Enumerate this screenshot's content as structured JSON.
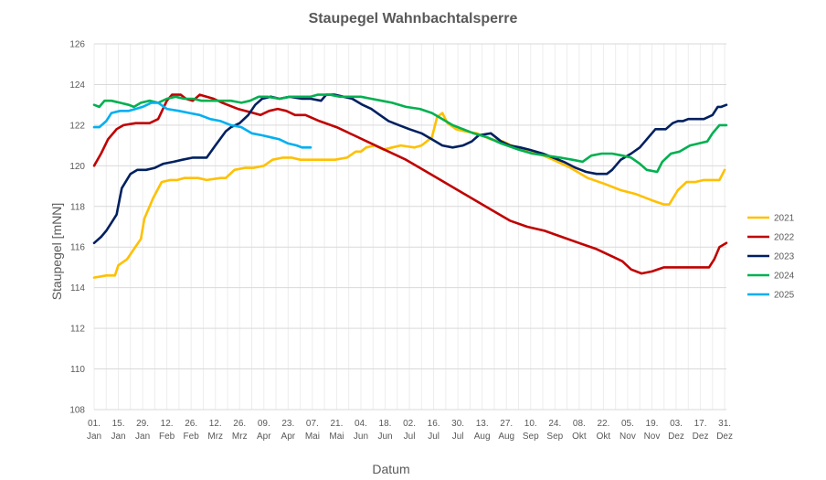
{
  "chart_data": {
    "type": "line",
    "title": "Staupegel Wahnbachtalsperre",
    "xlabel": "Datum",
    "ylabel": "Staupegel  [mNN]",
    "ylim": [
      108,
      126
    ],
    "yticks": [
      108,
      110,
      112,
      114,
      116,
      118,
      120,
      122,
      124,
      126
    ],
    "xlim": [
      1,
      366
    ],
    "grid": true,
    "legend_position": "right",
    "x_ticks": [
      {
        "day": 1,
        "d": "01.",
        "m": "Jan"
      },
      {
        "day": 15,
        "d": "15.",
        "m": "Jan"
      },
      {
        "day": 29,
        "d": "29.",
        "m": "Jan"
      },
      {
        "day": 43,
        "d": "12.",
        "m": "Feb"
      },
      {
        "day": 57,
        "d": "26.",
        "m": "Feb"
      },
      {
        "day": 71,
        "d": "12.",
        "m": "Mrz"
      },
      {
        "day": 85,
        "d": "26.",
        "m": "Mrz"
      },
      {
        "day": 99,
        "d": "09.",
        "m": "Apr"
      },
      {
        "day": 113,
        "d": "23.",
        "m": "Apr"
      },
      {
        "day": 127,
        "d": "07.",
        "m": "Mai"
      },
      {
        "day": 141,
        "d": "21.",
        "m": "Mai"
      },
      {
        "day": 155,
        "d": "04.",
        "m": "Jun"
      },
      {
        "day": 169,
        "d": "18.",
        "m": "Jun"
      },
      {
        "day": 183,
        "d": "02.",
        "m": "Jul"
      },
      {
        "day": 197,
        "d": "16.",
        "m": "Jul"
      },
      {
        "day": 211,
        "d": "30.",
        "m": "Jul"
      },
      {
        "day": 225,
        "d": "13.",
        "m": "Aug"
      },
      {
        "day": 239,
        "d": "27.",
        "m": "Aug"
      },
      {
        "day": 253,
        "d": "10.",
        "m": "Sep"
      },
      {
        "day": 267,
        "d": "24.",
        "m": "Sep"
      },
      {
        "day": 281,
        "d": "08.",
        "m": "Okt"
      },
      {
        "day": 295,
        "d": "22.",
        "m": "Okt"
      },
      {
        "day": 309,
        "d": "05.",
        "m": "Nov"
      },
      {
        "day": 323,
        "d": "19.",
        "m": "Nov"
      },
      {
        "day": 337,
        "d": "03.",
        "m": "Dez"
      },
      {
        "day": 351,
        "d": "17.",
        "m": "Dez"
      },
      {
        "day": 365,
        "d": "31.",
        "m": "Dez"
      }
    ],
    "series": [
      {
        "name": "2021",
        "color": "#FFC000",
        "points": [
          [
            1,
            114.5
          ],
          [
            8,
            114.6
          ],
          [
            13,
            114.6
          ],
          [
            15,
            115.1
          ],
          [
            20,
            115.4
          ],
          [
            24,
            115.9
          ],
          [
            28,
            116.4
          ],
          [
            30,
            117.4
          ],
          [
            35,
            118.4
          ],
          [
            40,
            119.2
          ],
          [
            45,
            119.3
          ],
          [
            49,
            119.3
          ],
          [
            53,
            119.4
          ],
          [
            61,
            119.4
          ],
          [
            66,
            119.3
          ],
          [
            74,
            119.4
          ],
          [
            77,
            119.4
          ],
          [
            82,
            119.8
          ],
          [
            88,
            119.9
          ],
          [
            93,
            119.9
          ],
          [
            99,
            120.0
          ],
          [
            104,
            120.3
          ],
          [
            110,
            120.4
          ],
          [
            115,
            120.4
          ],
          [
            120,
            120.3
          ],
          [
            125,
            120.3
          ],
          [
            131,
            120.3
          ],
          [
            140,
            120.3
          ],
          [
            147,
            120.4
          ],
          [
            152,
            120.7
          ],
          [
            155,
            120.7
          ],
          [
            158,
            120.9
          ],
          [
            163,
            121.0
          ],
          [
            168,
            120.8
          ],
          [
            173,
            120.9
          ],
          [
            178,
            121.0
          ],
          [
            186,
            120.9
          ],
          [
            190,
            121.0
          ],
          [
            196,
            121.4
          ],
          [
            199,
            122.4
          ],
          [
            202,
            122.6
          ],
          [
            205,
            122.1
          ],
          [
            210,
            121.8
          ],
          [
            215,
            121.7
          ],
          [
            222,
            121.6
          ],
          [
            230,
            121.3
          ],
          [
            237,
            121.2
          ],
          [
            247,
            120.8
          ],
          [
            255,
            120.7
          ],
          [
            266,
            120.3
          ],
          [
            276,
            119.9
          ],
          [
            286,
            119.4
          ],
          [
            296,
            119.1
          ],
          [
            305,
            118.8
          ],
          [
            314,
            118.6
          ],
          [
            323,
            118.3
          ],
          [
            330,
            118.1
          ],
          [
            333,
            118.1
          ],
          [
            338,
            118.8
          ],
          [
            343,
            119.2
          ],
          [
            348,
            119.2
          ],
          [
            353,
            119.3
          ],
          [
            358,
            119.3
          ],
          [
            362,
            119.3
          ],
          [
            365,
            119.8
          ]
        ]
      },
      {
        "name": "2022",
        "color": "#C00000",
        "points": [
          [
            1,
            120.0
          ],
          [
            5,
            120.6
          ],
          [
            9,
            121.3
          ],
          [
            14,
            121.8
          ],
          [
            18,
            122.0
          ],
          [
            25,
            122.1
          ],
          [
            33,
            122.1
          ],
          [
            38,
            122.3
          ],
          [
            43,
            123.2
          ],
          [
            46,
            123.5
          ],
          [
            51,
            123.5
          ],
          [
            54,
            123.3
          ],
          [
            58,
            123.2
          ],
          [
            62,
            123.5
          ],
          [
            70,
            123.3
          ],
          [
            75,
            123.1
          ],
          [
            84,
            122.8
          ],
          [
            93,
            122.6
          ],
          [
            97,
            122.5
          ],
          [
            102,
            122.7
          ],
          [
            107,
            122.8
          ],
          [
            112,
            122.7
          ],
          [
            117,
            122.5
          ],
          [
            123,
            122.5
          ],
          [
            131,
            122.2
          ],
          [
            141,
            121.9
          ],
          [
            151,
            121.5
          ],
          [
            161,
            121.1
          ],
          [
            171,
            120.7
          ],
          [
            181,
            120.3
          ],
          [
            191,
            119.8
          ],
          [
            201,
            119.3
          ],
          [
            211,
            118.8
          ],
          [
            221,
            118.3
          ],
          [
            231,
            117.8
          ],
          [
            241,
            117.3
          ],
          [
            251,
            117.0
          ],
          [
            261,
            116.8
          ],
          [
            271,
            116.5
          ],
          [
            281,
            116.2
          ],
          [
            291,
            115.9
          ],
          [
            301,
            115.5
          ],
          [
            306,
            115.3
          ],
          [
            311,
            114.9
          ],
          [
            317,
            114.7
          ],
          [
            323,
            114.8
          ],
          [
            330,
            115.0
          ],
          [
            340,
            115.0
          ],
          [
            350,
            115.0
          ],
          [
            356,
            115.0
          ],
          [
            359,
            115.4
          ],
          [
            362,
            116.0
          ],
          [
            366,
            116.2
          ]
        ]
      },
      {
        "name": "2023",
        "color": "#002060",
        "points": [
          [
            1,
            116.2
          ],
          [
            5,
            116.5
          ],
          [
            8,
            116.8
          ],
          [
            11,
            117.2
          ],
          [
            14,
            117.6
          ],
          [
            17,
            118.9
          ],
          [
            22,
            119.6
          ],
          [
            26,
            119.8
          ],
          [
            31,
            119.8
          ],
          [
            36,
            119.9
          ],
          [
            41,
            120.1
          ],
          [
            47,
            120.2
          ],
          [
            52,
            120.3
          ],
          [
            58,
            120.4
          ],
          [
            66,
            120.4
          ],
          [
            71,
            121.0
          ],
          [
            77,
            121.7
          ],
          [
            80,
            121.9
          ],
          [
            85,
            122.1
          ],
          [
            90,
            122.5
          ],
          [
            94,
            123.0
          ],
          [
            98,
            123.3
          ],
          [
            103,
            123.4
          ],
          [
            108,
            123.3
          ],
          [
            114,
            123.4
          ],
          [
            121,
            123.3
          ],
          [
            126,
            123.3
          ],
          [
            132,
            123.2
          ],
          [
            135,
            123.5
          ],
          [
            140,
            123.5
          ],
          [
            145,
            123.4
          ],
          [
            150,
            123.3
          ],
          [
            156,
            123.0
          ],
          [
            161,
            122.8
          ],
          [
            166,
            122.5
          ],
          [
            171,
            122.2
          ],
          [
            177,
            122.0
          ],
          [
            183,
            121.8
          ],
          [
            190,
            121.6
          ],
          [
            196,
            121.3
          ],
          [
            202,
            121.0
          ],
          [
            208,
            120.9
          ],
          [
            214,
            121.0
          ],
          [
            219,
            121.2
          ],
          [
            223,
            121.5
          ],
          [
            230,
            121.6
          ],
          [
            236,
            121.2
          ],
          [
            241,
            121.0
          ],
          [
            247,
            120.9
          ],
          [
            252,
            120.8
          ],
          [
            260,
            120.6
          ],
          [
            266,
            120.4
          ],
          [
            272,
            120.2
          ],
          [
            279,
            119.9
          ],
          [
            285,
            119.7
          ],
          [
            291,
            119.6
          ],
          [
            297,
            119.6
          ],
          [
            300,
            119.8
          ],
          [
            305,
            120.3
          ],
          [
            311,
            120.6
          ],
          [
            316,
            120.9
          ],
          [
            321,
            121.4
          ],
          [
            325,
            121.8
          ],
          [
            331,
            121.8
          ],
          [
            335,
            122.1
          ],
          [
            338,
            122.2
          ],
          [
            341,
            122.2
          ],
          [
            344,
            122.3
          ],
          [
            349,
            122.3
          ],
          [
            353,
            122.3
          ],
          [
            358,
            122.5
          ],
          [
            361,
            122.9
          ],
          [
            363,
            122.9
          ],
          [
            366,
            123.0
          ]
        ]
      },
      {
        "name": "2024",
        "color": "#00B050",
        "points": [
          [
            1,
            123.0
          ],
          [
            4,
            122.9
          ],
          [
            7,
            123.2
          ],
          [
            11,
            123.2
          ],
          [
            16,
            123.1
          ],
          [
            21,
            123.0
          ],
          [
            24,
            122.9
          ],
          [
            28,
            123.1
          ],
          [
            33,
            123.2
          ],
          [
            38,
            123.1
          ],
          [
            43,
            123.3
          ],
          [
            48,
            123.4
          ],
          [
            53,
            123.3
          ],
          [
            58,
            123.3
          ],
          [
            63,
            123.2
          ],
          [
            69,
            123.2
          ],
          [
            75,
            123.2
          ],
          [
            80,
            123.2
          ],
          [
            86,
            123.1
          ],
          [
            91,
            123.2
          ],
          [
            96,
            123.4
          ],
          [
            101,
            123.4
          ],
          [
            108,
            123.3
          ],
          [
            114,
            123.4
          ],
          [
            120,
            123.4
          ],
          [
            126,
            123.4
          ],
          [
            130,
            123.5
          ],
          [
            137,
            123.5
          ],
          [
            143,
            123.4
          ],
          [
            149,
            123.4
          ],
          [
            155,
            123.4
          ],
          [
            161,
            123.3
          ],
          [
            167,
            123.2
          ],
          [
            173,
            123.1
          ],
          [
            181,
            122.9
          ],
          [
            189,
            122.8
          ],
          [
            196,
            122.6
          ],
          [
            202,
            122.3
          ],
          [
            208,
            122.0
          ],
          [
            214,
            121.8
          ],
          [
            220,
            121.6
          ],
          [
            228,
            121.4
          ],
          [
            236,
            121.1
          ],
          [
            246,
            120.8
          ],
          [
            254,
            120.6
          ],
          [
            262,
            120.5
          ],
          [
            270,
            120.4
          ],
          [
            277,
            120.3
          ],
          [
            283,
            120.2
          ],
          [
            288,
            120.5
          ],
          [
            294,
            120.6
          ],
          [
            300,
            120.6
          ],
          [
            306,
            120.5
          ],
          [
            311,
            120.4
          ],
          [
            316,
            120.1
          ],
          [
            320,
            119.8
          ],
          [
            326,
            119.7
          ],
          [
            329,
            120.2
          ],
          [
            334,
            120.6
          ],
          [
            339,
            120.7
          ],
          [
            345,
            121.0
          ],
          [
            350,
            121.1
          ],
          [
            355,
            121.2
          ],
          [
            358,
            121.6
          ],
          [
            362,
            122.0
          ],
          [
            366,
            122.0
          ]
        ]
      },
      {
        "name": "2025",
        "color": "#00B0F0",
        "points": [
          [
            1,
            121.9
          ],
          [
            4,
            121.9
          ],
          [
            8,
            122.2
          ],
          [
            11,
            122.6
          ],
          [
            16,
            122.7
          ],
          [
            21,
            122.7
          ],
          [
            25,
            122.8
          ],
          [
            29,
            122.9
          ],
          [
            34,
            123.1
          ],
          [
            38,
            123.1
          ],
          [
            43,
            122.8
          ],
          [
            50,
            122.7
          ],
          [
            56,
            122.6
          ],
          [
            62,
            122.5
          ],
          [
            68,
            122.3
          ],
          [
            74,
            122.2
          ],
          [
            80,
            122.0
          ],
          [
            86,
            121.9
          ],
          [
            92,
            121.6
          ],
          [
            98,
            121.5
          ],
          [
            103,
            121.4
          ],
          [
            108,
            121.3
          ],
          [
            113,
            121.1
          ],
          [
            118,
            121.0
          ],
          [
            121,
            120.9
          ],
          [
            124,
            120.9
          ],
          [
            126,
            120.9
          ]
        ]
      }
    ]
  }
}
